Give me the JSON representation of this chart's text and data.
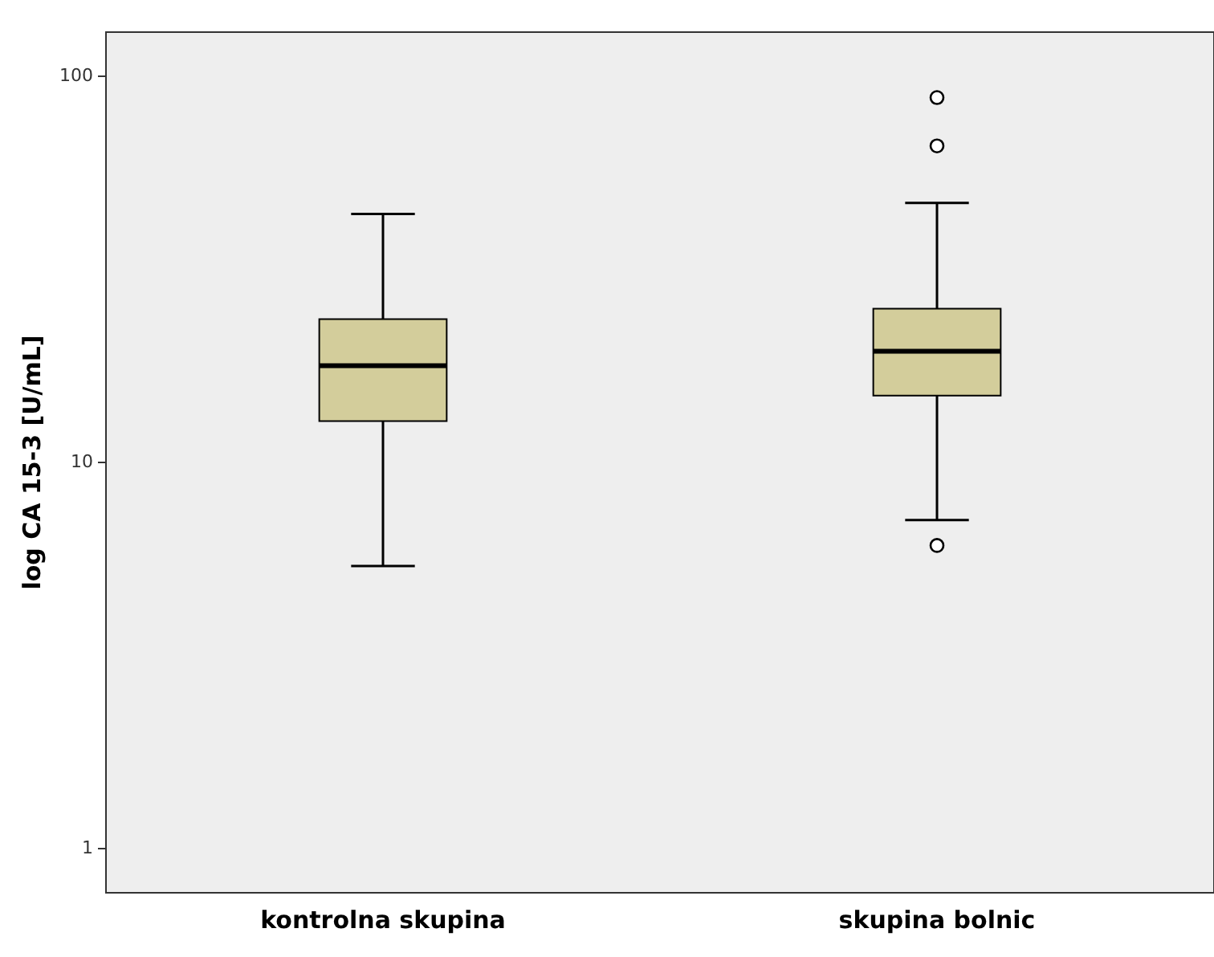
{
  "chart_data": {
    "type": "box",
    "ylabel": "log CA 15-3 [U/mL]",
    "categories": [
      "kontrolna skupina",
      "skupina bolnic"
    ],
    "color": "#d3cd9b",
    "log": "y",
    "ylim": [
      0.77,
      130
    ],
    "yticks": [
      1,
      10,
      100
    ],
    "grid": false,
    "legend": false,
    "boxes": [
      {
        "low": 5.4,
        "q1": 12.8,
        "median": 17.8,
        "q3": 23.5,
        "high": 44
      },
      {
        "low": 7.1,
        "q1": 14.9,
        "median": 19.4,
        "q3": 25,
        "high": 47,
        "outliers": [
          88,
          66,
          6.1
        ]
      }
    ]
  }
}
